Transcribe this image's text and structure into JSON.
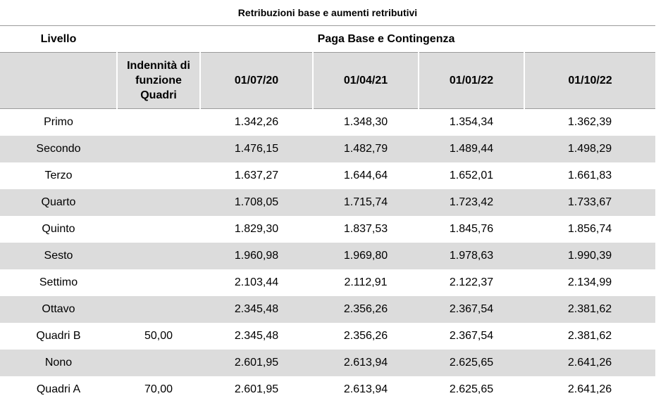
{
  "title": "Retribuzioni base e aumenti retributivi",
  "header": {
    "livello": "Livello",
    "group": "Paga Base e Contingenza",
    "indennita_l1": "Indennità di",
    "indennita_l2": "funzione",
    "indennita_l3": "Quadri",
    "dates": [
      "01/07/20",
      "01/04/21",
      "01/01/22",
      "01/10/22"
    ]
  },
  "rows": [
    {
      "livello": "Primo",
      "indennita": "",
      "values": [
        "1.342,26",
        "1.348,30",
        "1.354,34",
        "1.362,39"
      ]
    },
    {
      "livello": "Secondo",
      "indennita": "",
      "values": [
        "1.476,15",
        "1.482,79",
        "1.489,44",
        "1.498,29"
      ]
    },
    {
      "livello": "Terzo",
      "indennita": "",
      "values": [
        "1.637,27",
        "1.644,64",
        "1.652,01",
        "1.661,83"
      ]
    },
    {
      "livello": "Quarto",
      "indennita": "",
      "values": [
        "1.708,05",
        "1.715,74",
        "1.723,42",
        "1.733,67"
      ]
    },
    {
      "livello": "Quinto",
      "indennita": "",
      "values": [
        "1.829,30",
        "1.837,53",
        "1.845,76",
        "1.856,74"
      ]
    },
    {
      "livello": "Sesto",
      "indennita": "",
      "values": [
        "1.960,98",
        "1.969,80",
        "1.978,63",
        "1.990,39"
      ]
    },
    {
      "livello": "Settimo",
      "indennita": "",
      "values": [
        "2.103,44",
        "2.112,91",
        "2.122,37",
        "2.134,99"
      ]
    },
    {
      "livello": "Ottavo",
      "indennita": "",
      "values": [
        "2.345,48",
        "2.356,26",
        "2.367,54",
        "2.381,62"
      ]
    },
    {
      "livello": "Quadri B",
      "indennita": "50,00",
      "values": [
        "2.345,48",
        "2.356,26",
        "2.367,54",
        "2.381,62"
      ]
    },
    {
      "livello": "Nono",
      "indennita": "",
      "values": [
        "2.601,95",
        "2.613,94",
        "2.625,65",
        "2.641,26"
      ]
    },
    {
      "livello": "Quadri A",
      "indennita": "70,00",
      "values": [
        "2.601,95",
        "2.613,94",
        "2.625,65",
        "2.641,26"
      ]
    }
  ]
}
